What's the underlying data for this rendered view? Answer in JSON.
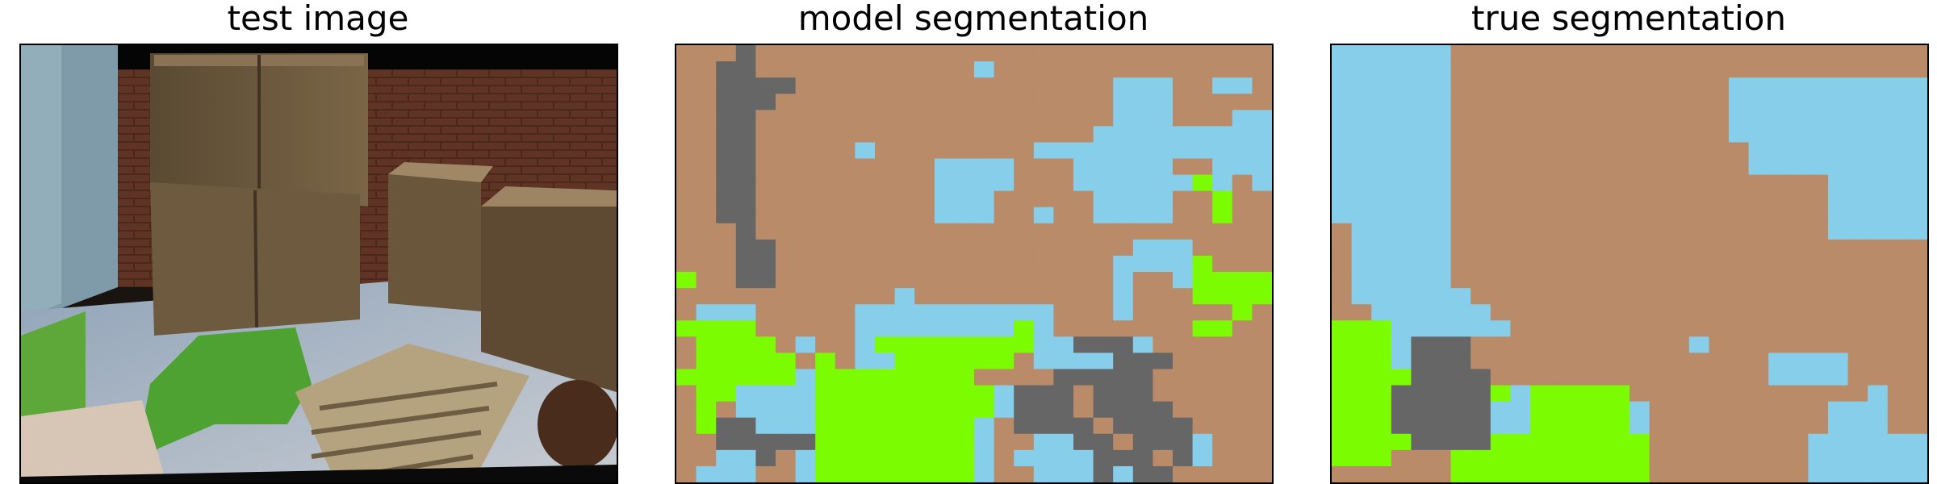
{
  "panels": {
    "test_image": {
      "title": "test image"
    },
    "model_segmentation": {
      "title": "model segmentation"
    },
    "true_segmentation": {
      "title": "true segmentation"
    }
  },
  "palette": {
    "0": "#b98b68",
    "1": "#87ceeb",
    "2": "#7cfc00",
    "3": "#666666"
  },
  "model_mask": [
    "000300000000000000000000000000",
    "003300000000000100000000000000",
    "003333000000000000000011100110",
    "003330000000000000000011100000",
    "003300000000000000000011100011",
    "003300000000000000000111111111",
    "003300000100000000111111111111",
    "003300000000011110001111100111",
    "003300000000011110001111112101",
    "003300000000011100000111100200",
    "003300000000011100100111100200",
    "000300000000000000000000000000",
    "000330000000000000000001110000",
    "000330000000000000000011112000",
    "200330000000000000000010012222",
    "000000000001000000000010002222",
    "011100000111111111100010000020",
    "222200000111111112100000002200",
    "022220100122222222113331000000",
    "022222020112222220111133300000",
    "222222122222222000033333000000",
    "022111122222222213330333000000",
    "020111122222222213330333300000",
    "023311122222222103333033330000",
    "003333322222222100113303331000",
    "001130122222222101111333031000",
    "011100122222222100111313300000"
  ],
  "true_mask": [
    "111111000000000000000000000000",
    "111111000000000000000000000000",
    "111111000000000000001111111111",
    "111111000000000000001111111111",
    "111111000000000000001111111111",
    "111111000000000000001111111111",
    "111111000000000000000111111111",
    "111111000000000000000111111111",
    "111111000000000000000000011111",
    "111111000000000000000000011111",
    "111111000000000000000000011111",
    "011111000000000000000000011111",
    "011111000000000000000000000000",
    "011111000000000000000000000000",
    "011111000000000000000000000000",
    "011111100000000000000000000000",
    "001111110000000000000000000000",
    "222111111000000000000000000000",
    "222133300000000000100000000000",
    "222133300000000000000011110000",
    "222233330000000000000011110000",
    "222333332122222000000000000100",
    "222333331122222100000000011100",
    "222333331122222100000000011100",
    "222233332222222200000000111111",
    "222000222222222200000000111111",
    "000000222222222200000000111111"
  ]
}
